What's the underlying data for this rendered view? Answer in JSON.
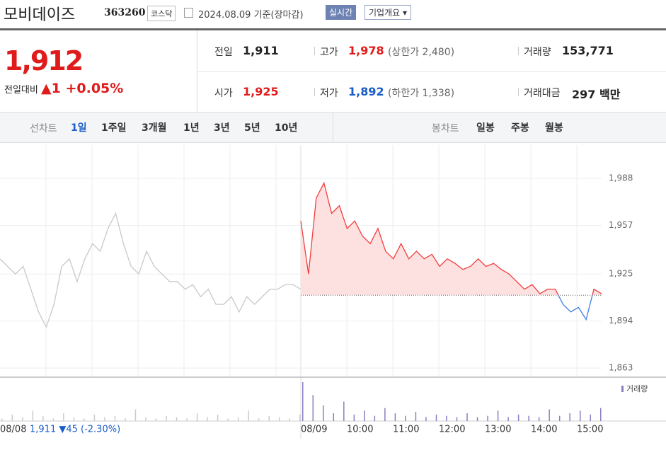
{
  "header": {
    "name": "모비데이즈",
    "code": "363260",
    "market": "코스닥",
    "date": "2024.08.09",
    "basis": "기준(장마감)",
    "realtime": "실시간",
    "company": "기업개요"
  },
  "quote": {
    "price": "1,912",
    "change_label": "전일대비",
    "change": "1",
    "change_pct": "+0.05%",
    "stats": [
      {
        "label": "전일",
        "value": "1,911"
      },
      {
        "label": "고가",
        "value": "1,978",
        "extra": "(상한가 2,480)"
      },
      {
        "label": "거래량",
        "value": "153,771"
      },
      {
        "label": "시가",
        "value": "1,925"
      },
      {
        "label": "저가",
        "value": "1,892",
        "extra": "(하한가 1,338)"
      },
      {
        "label": "거래대금",
        "value": "297 백만"
      }
    ]
  },
  "tabs": {
    "line": "선차트",
    "periods": [
      "1일",
      "1주일",
      "3개월",
      "1년",
      "3년",
      "5년",
      "10년"
    ],
    "candle": "봉차트",
    "candles": [
      "일봉",
      "주봉",
      "월봉"
    ]
  },
  "chart_data": {
    "type": "line",
    "ylim": [
      1857,
      2010
    ],
    "yticks": [
      {
        "value": 1988,
        "label": "1,988"
      },
      {
        "value": 1957,
        "label": "1,957"
      },
      {
        "value": 1925,
        "label": "1,925"
      },
      {
        "value": 1894,
        "label": "1,894"
      },
      {
        "value": 1863,
        "label": "1,863"
      }
    ],
    "x_labels": [
      "08/08",
      "08/09",
      "10:00",
      "11:00",
      "12:00",
      "13:00",
      "14:00",
      "15:00"
    ],
    "prev_note": "1,911 ▼45 (-2.30%)",
    "prev_close": 1911,
    "volume_label": "거래량",
    "series": [
      {
        "color": "#c8c8cc",
        "values": [
          1935,
          1930,
          1925,
          1930,
          1915,
          1900,
          1890,
          1905,
          1930,
          1935,
          1920,
          1935,
          1945,
          1940,
          1955,
          1965,
          1945,
          1930,
          1925,
          1940,
          1930,
          1925,
          1920,
          1920,
          1915,
          1918,
          1910,
          1915,
          1905,
          1905,
          1910,
          1900,
          1910,
          1905,
          1910,
          1915,
          1915,
          1918,
          1918,
          1915
        ]
      },
      {
        "color": "#f23d3d",
        "values": [
          1960,
          1925,
          1975,
          1985,
          1965,
          1970,
          1955,
          1960,
          1950,
          1945,
          1955,
          1940,
          1935,
          1945,
          1935,
          1940,
          1935,
          1938,
          1930,
          1935,
          1932,
          1928,
          1930,
          1935,
          1930,
          1932,
          1928,
          1925,
          1920,
          1915,
          1918,
          1912,
          1915,
          1915,
          1905,
          1900,
          1903,
          1895,
          1915,
          1912
        ]
      }
    ],
    "below_color": "#3f7fe0",
    "volume": [
      [
        2,
        5,
        3,
        8,
        4,
        2,
        6,
        3,
        2,
        5,
        3,
        4,
        2,
        9,
        3,
        2,
        4,
        3,
        2,
        6,
        3,
        5,
        2,
        3,
        8,
        2,
        4,
        3,
        2,
        5
      ],
      [
        30,
        20,
        12,
        6,
        15,
        5,
        8,
        4,
        10,
        6,
        4,
        7,
        3,
        5,
        4,
        3,
        6,
        3,
        4,
        8,
        3,
        5,
        4,
        3,
        9,
        4,
        6,
        8,
        5,
        10
      ]
    ]
  }
}
